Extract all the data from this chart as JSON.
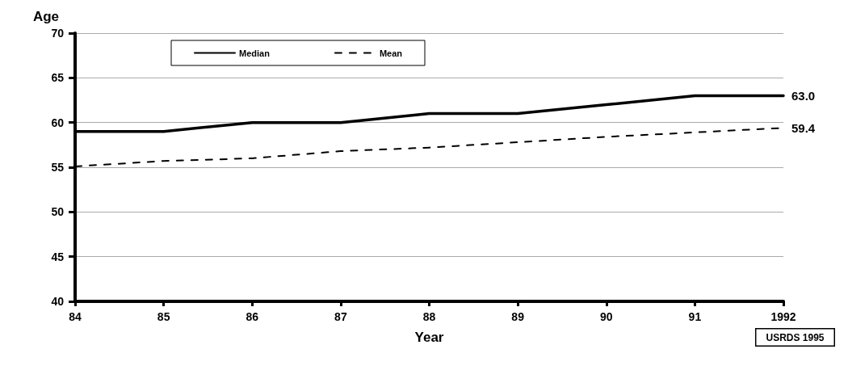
{
  "chart_data": {
    "type": "line",
    "xlabel": "Year",
    "ylabel": "Age",
    "categories": [
      "84",
      "85",
      "86",
      "87",
      "88",
      "89",
      "90",
      "91",
      "1992"
    ],
    "series": [
      {
        "name": "Median",
        "color": "#000000",
        "line_style": "solid",
        "values": [
          59,
          59,
          60,
          60,
          61,
          61,
          62,
          63,
          63.0
        ],
        "value_labels": [
          null,
          null,
          null,
          null,
          null,
          null,
          null,
          null,
          "63.0"
        ]
      },
      {
        "name": "Mean",
        "color": "#000000",
        "line_style": "dashed",
        "values": [
          55.1,
          55.7,
          56.0,
          56.8,
          57.2,
          57.8,
          58.4,
          58.9,
          59.4
        ],
        "value_labels": [
          null,
          null,
          null,
          null,
          null,
          null,
          null,
          null,
          "59.4"
        ]
      }
    ],
    "ylim": [
      40,
      70
    ],
    "yticks": [
      40,
      45,
      50,
      55,
      60,
      65,
      70
    ],
    "grid": "y",
    "legend": "top",
    "marker": "none",
    "annotations": [
      "USRDS 1995"
    ]
  }
}
